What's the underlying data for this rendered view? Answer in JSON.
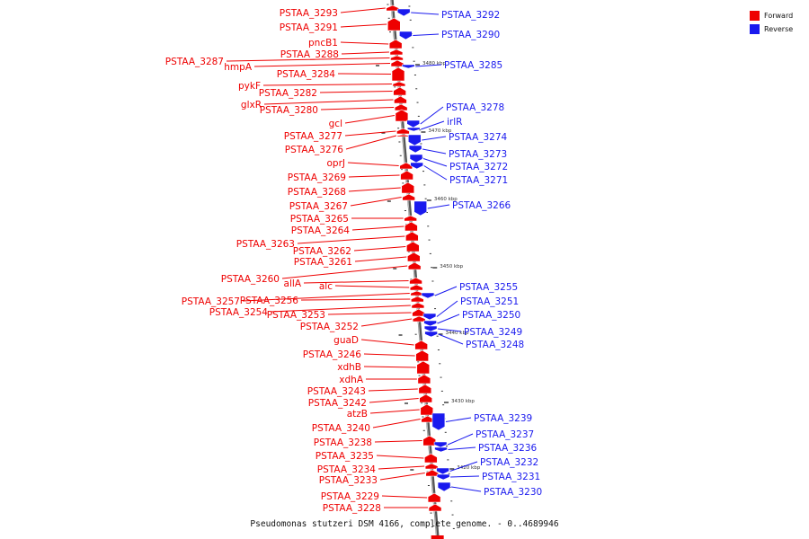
{
  "caption": "Pseudomonas stutzeri DSM 4166, complete genome. - 0..4689946",
  "legend": [
    {
      "label": "Forward",
      "color": "#ee0000"
    },
    {
      "label": "Reverse",
      "color": "#1a1aee"
    }
  ],
  "ticks": [
    "3480 kbp",
    "3470 kbp",
    "3460 kbp",
    "3450 kbp",
    "3440 kbp",
    "3430 kbp",
    "3420 kbp"
  ],
  "forward_genes": [
    "PSTAA_3293",
    "PSTAA_3291",
    "pncB1",
    "PSTAA_3288",
    "PSTAA_3287",
    "hmpA",
    "PSTAA_3284",
    "pykF",
    "PSTAA_3282",
    "glxR",
    "PSTAA_3280",
    "gcl",
    "PSTAA_3277",
    "PSTAA_3276",
    "oprJ",
    "PSTAA_3269",
    "PSTAA_3268",
    "PSTAA_3267",
    "PSTAA_3265",
    "PSTAA_3264",
    "PSTAA_3263",
    "PSTAA_3262",
    "PSTAA_3261",
    "PSTAA_3260",
    "allA",
    "alc",
    "PSTAA_3257",
    "PSTAA_3256",
    "PSTAA_3254",
    "PSTAA_3253",
    "PSTAA_3252",
    "guaD",
    "PSTAA_3246",
    "xdhB",
    "xdhA",
    "PSTAA_3243",
    "PSTAA_3242",
    "atzB",
    "PSTAA_3240",
    "PSTAA_3238",
    "PSTAA_3235",
    "PSTAA_3234",
    "PSTAA_3233",
    "PSTAA_3229",
    "PSTAA_3228"
  ],
  "reverse_genes": [
    "PSTAA_3292",
    "PSTAA_3290",
    "PSTAA_3285",
    "PSTAA_3278",
    "irlR",
    "PSTAA_3274",
    "PSTAA_3273",
    "PSTAA_3272",
    "PSTAA_3271",
    "PSTAA_3266",
    "PSTAA_3255",
    "PSTAA_3251",
    "PSTAA_3250",
    "PSTAA_3249",
    "PSTAA_3248",
    "PSTAA_3239",
    "PSTAA_3237",
    "PSTAA_3236",
    "PSTAA_3232",
    "PSTAA_3231",
    "PSTAA_3230"
  ]
}
